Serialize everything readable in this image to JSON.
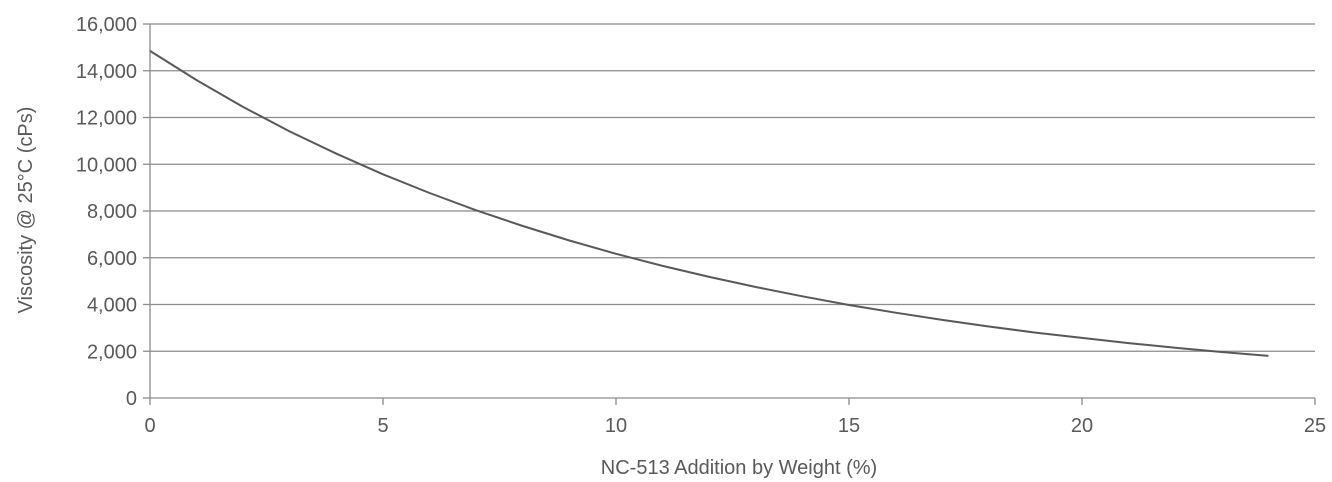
{
  "chart_data": {
    "type": "line",
    "title": "",
    "xlabel": "NC-513 Addition by Weight (%)",
    "ylabel": "Viscosity  @ 25°C (cPs)",
    "xlim": [
      0,
      25
    ],
    "ylim": [
      0,
      16000
    ],
    "grid": "horizontal",
    "legend": "none",
    "line_color": "#595959",
    "grid_color": "#8c8c8c",
    "x_ticks": [
      0,
      5,
      10,
      15,
      20,
      25
    ],
    "x_tick_labels": [
      "0",
      "5",
      "10",
      "15",
      "20",
      "25"
    ],
    "y_ticks": [
      0,
      2000,
      4000,
      6000,
      8000,
      10000,
      12000,
      14000,
      16000
    ],
    "y_tick_labels": [
      "0",
      "2,000",
      "4,000",
      "6,000",
      "8,000",
      "10,000",
      "12,000",
      "14,000",
      "16,000"
    ],
    "series": [
      {
        "x": [
          0,
          1,
          2,
          3,
          4,
          5,
          6,
          7,
          8,
          9,
          10,
          11,
          12,
          13,
          14,
          15,
          16,
          17,
          18,
          19,
          20,
          21,
          22,
          23,
          24
        ],
        "y": [
          14850,
          13600,
          12450,
          11400,
          10450,
          9570,
          8770,
          8030,
          7360,
          6740,
          6170,
          5650,
          5180,
          4750,
          4350,
          3980,
          3650,
          3340,
          3060,
          2800,
          2570,
          2350,
          2150,
          1970,
          1800
        ]
      }
    ]
  }
}
